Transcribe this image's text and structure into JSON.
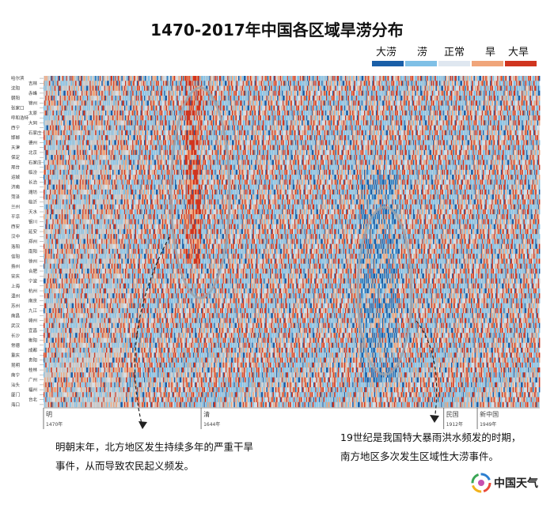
{
  "chart_data": {
    "type": "heatmap",
    "title": "1470-2017年中国各区域旱涝分布",
    "x_range": [
      1470,
      2017
    ],
    "legend": [
      {
        "label": "大涝",
        "color": "#1a5fa8"
      },
      {
        "label": "涝",
        "color": "#7fc0e6"
      },
      {
        "label": "正常",
        "color": "#dfe7f0"
      },
      {
        "label": "旱",
        "color": "#f0a57a"
      },
      {
        "label": "大旱",
        "color": "#d0351f"
      }
    ],
    "rows": [
      "哈尔滨",
      "吉林",
      "沈阳",
      "赤峰",
      "朝阳",
      "锦州",
      "张家口",
      "太原",
      "呼和浩特",
      "大同",
      "西宁",
      "石家庄",
      "邯郸",
      "德州",
      "天津",
      "北京",
      "保定",
      "石家庄",
      "邢台",
      "临汾",
      "运城",
      "长治",
      "济南",
      "潍坊",
      "菏泽",
      "临沂",
      "兰州",
      "天水",
      "平凉",
      "银川",
      "西安",
      "延安",
      "汉中",
      "郑州",
      "洛阳",
      "南阳",
      "信阳",
      "徐州",
      "扬州",
      "合肥",
      "安庆",
      "宁波",
      "上海",
      "杭州",
      "温州",
      "南京",
      "苏州",
      "九江",
      "南昌",
      "赣州",
      "武汉",
      "宜昌",
      "长沙",
      "衡阳",
      "常德",
      "成都",
      "重庆",
      "贵阳",
      "昆明",
      "桂林",
      "南宁",
      "广州",
      "汕头",
      "福州",
      "厦门",
      "台北",
      "海口"
    ],
    "period_markers": [
      {
        "label": "明",
        "year": 1470
      },
      {
        "label": "清",
        "year": 1644
      },
      {
        "label": "民国",
        "year": 1912
      },
      {
        "label": "1912年",
        "year": 1912
      },
      {
        "label": "新中国",
        "year": 1949
      },
      {
        "label": "1949年",
        "year": 1949
      }
    ],
    "axis_labels": [
      "1470年",
      "1644年"
    ]
  },
  "annotations": [
    {
      "lines": [
        "明朝末年，北方地区发生持续多年的严重干旱",
        "事件，从而导致农民起义频发。"
      ]
    },
    {
      "lines": [
        "19世纪是我国特大暴雨洪水频发的时期，",
        "南方地区多次发生区域性大涝事件。"
      ]
    }
  ],
  "brand": {
    "text": "中国天气"
  }
}
